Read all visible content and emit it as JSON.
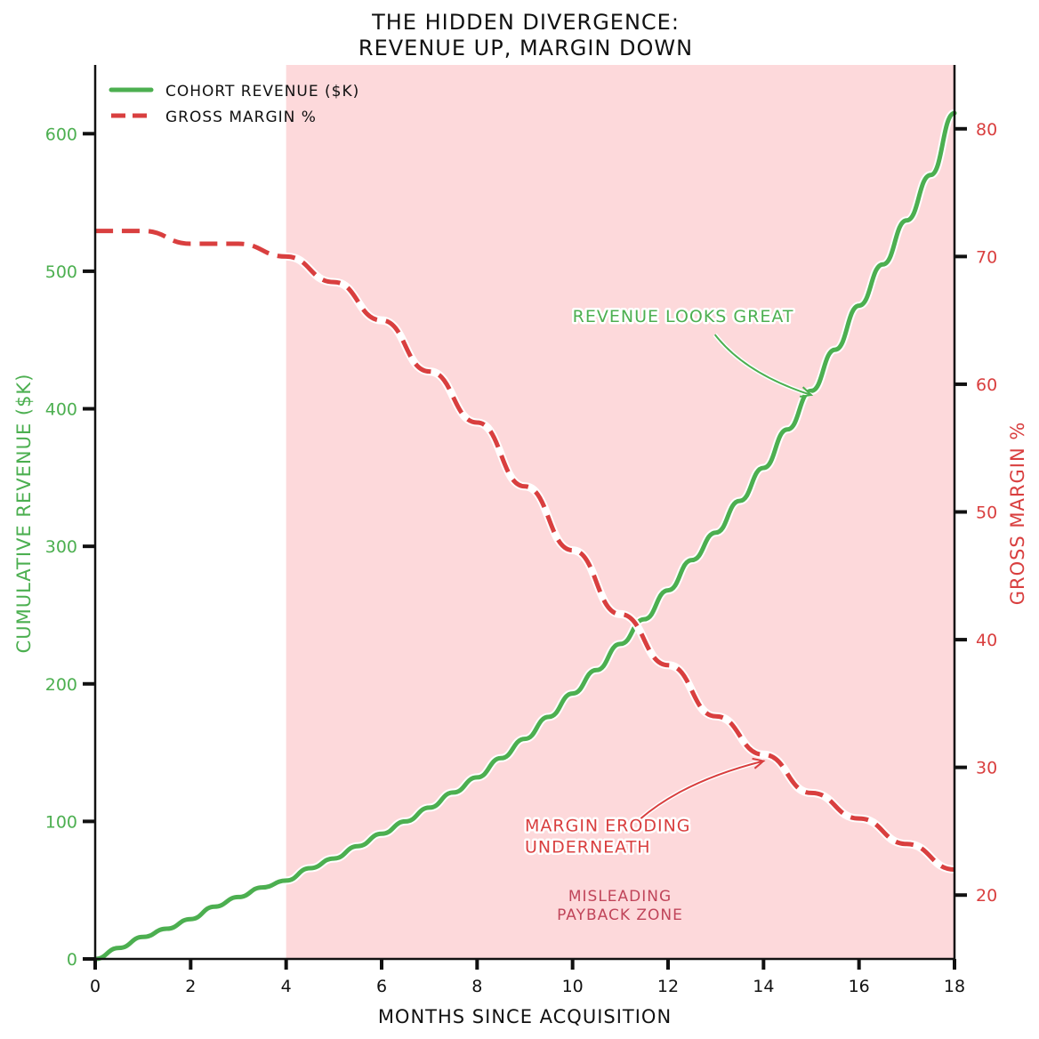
{
  "chart_data": {
    "type": "line",
    "title_lines": [
      "THE HIDDEN DIVERGENCE:",
      "REVENUE UP, MARGIN DOWN"
    ],
    "xlabel": "MONTHS SINCE ACQUISITION",
    "ylabel_left": "CUMULATIVE REVENUE ($K)",
    "ylabel_right": "GROSS MARGIN %",
    "xlim": [
      0,
      18
    ],
    "ylim_left": [
      0,
      650
    ],
    "ylim_right": [
      15,
      85
    ],
    "x_ticks": [
      0,
      2,
      4,
      6,
      8,
      10,
      12,
      14,
      16,
      18
    ],
    "y_left_ticks": [
      0,
      100,
      200,
      300,
      400,
      500,
      600
    ],
    "y_right_ticks": [
      20,
      30,
      40,
      50,
      60,
      70,
      80
    ],
    "grid": false,
    "legend_position": "top-left",
    "shaded_region": {
      "x_start": 4,
      "x_end": 18,
      "label_lines": [
        "MISLEADING",
        "PAYBACK ZONE"
      ],
      "color": "#fdd9db"
    },
    "series": [
      {
        "name": "COHORT REVENUE ($K)",
        "axis": "left",
        "color": "#4caf50",
        "style": "solid",
        "x": [
          0,
          0.5,
          1,
          1.5,
          2,
          2.5,
          3,
          3.5,
          4,
          4.5,
          5,
          5.5,
          6,
          6.5,
          7,
          7.5,
          8,
          8.5,
          9,
          9.5,
          10,
          10.5,
          11,
          11.5,
          12,
          12.5,
          13,
          13.5,
          14,
          14.5,
          15,
          15.5,
          16,
          16.5,
          17,
          17.5,
          18
        ],
        "values": [
          0,
          8,
          16,
          22,
          29,
          38,
          45,
          52,
          57,
          66,
          73,
          82,
          91,
          100,
          110,
          121,
          132,
          146,
          160,
          176,
          193,
          210,
          229,
          247,
          268,
          290,
          310,
          333,
          357,
          385,
          413,
          443,
          475,
          505,
          537,
          570,
          615
        ]
      },
      {
        "name": "GROSS MARGIN %",
        "axis": "right",
        "color": "#d93f3f",
        "style": "dashed",
        "x": [
          0,
          1,
          2,
          3,
          4,
          5,
          6,
          7,
          8,
          9,
          10,
          11,
          12,
          13,
          14,
          15,
          16,
          17,
          18
        ],
        "values": [
          72,
          72,
          71,
          71,
          70,
          68,
          65,
          61,
          57,
          52,
          47,
          42,
          38,
          34,
          31,
          28,
          26,
          24,
          22
        ]
      }
    ],
    "annotations": [
      {
        "lines": [
          "REVENUE LOOKS GREAT"
        ],
        "color": "#4caf50",
        "text_at": [
          10,
          463
        ],
        "text_axis": "left",
        "arrow_to": [
          15,
          410
        ],
        "arrow_axis": "left"
      },
      {
        "lines": [
          "MARGIN ERODING",
          "UNDERNEATH"
        ],
        "color": "#d93f3f",
        "text_at": [
          9,
          25
        ],
        "text_axis": "right",
        "arrow_to": [
          14,
          30.5
        ],
        "arrow_axis": "right"
      }
    ]
  },
  "colors": {
    "revenue": "#4caf50",
    "margin": "#d93f3f",
    "zone_fill": "#fdd9db",
    "axis": "#111111"
  }
}
